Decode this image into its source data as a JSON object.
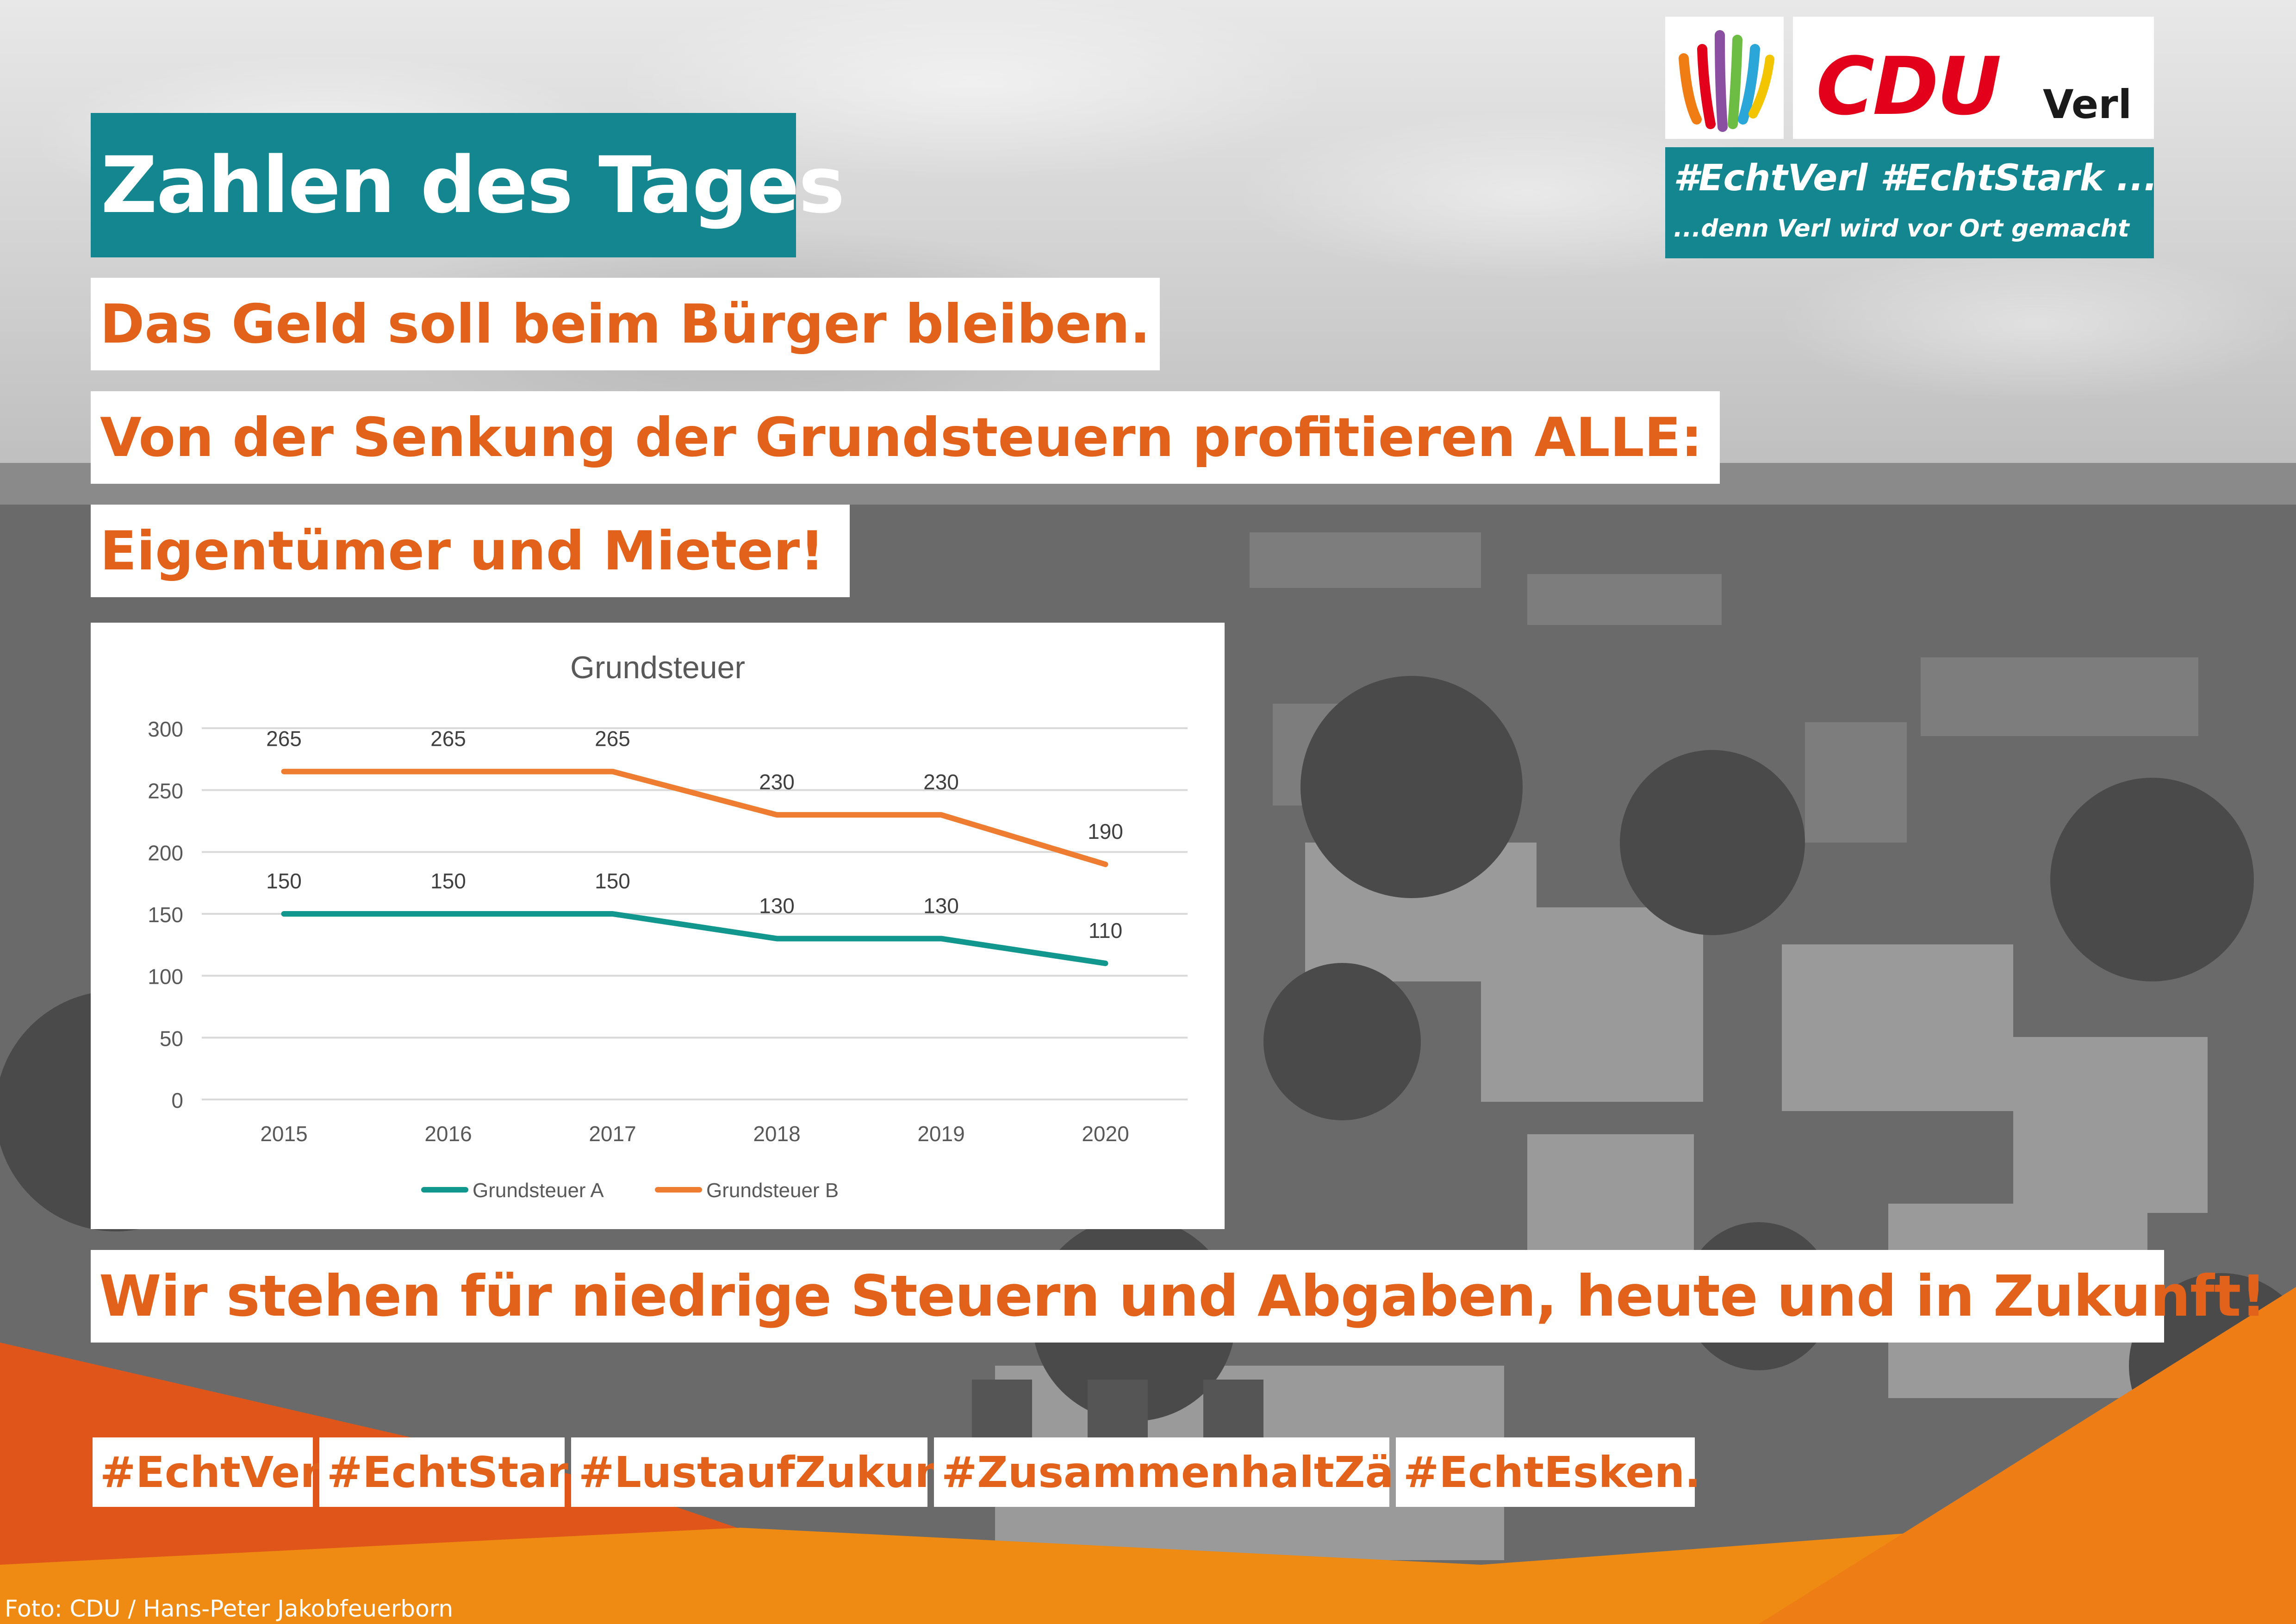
{
  "header": {
    "title": "Zahlen des Tages"
  },
  "headlines": {
    "line1": "Das Geld soll beim Bürger bleiben.",
    "line2": "Von der Senkung der Grundsteuern profitieren ALLE:",
    "line3": "Eigentümer und Mieter!"
  },
  "logo": {
    "party": "CDU",
    "city": "Verl",
    "slogan_main": "#EchtVerl #EchtStark ...",
    "slogan_sub": "...denn Verl wird vor Ort gemacht",
    "icon": "colored-stripes-logo-icon"
  },
  "chart_data": {
    "type": "line",
    "title": "Grundsteuer",
    "categories": [
      "2015",
      "2016",
      "2017",
      "2018",
      "2019",
      "2020"
    ],
    "y_ticks": [
      "0",
      "50",
      "100",
      "150",
      "200",
      "250",
      "300"
    ],
    "ylim": [
      0,
      300
    ],
    "grid": true,
    "legend_position": "bottom",
    "series": [
      {
        "name": "Grundsteuer A",
        "values": [
          150,
          150,
          150,
          130,
          130,
          110
        ],
        "color": "#12978f"
      },
      {
        "name": "Grundsteuer B",
        "values": [
          265,
          265,
          265,
          230,
          230,
          190
        ],
        "color": "#ef7d31"
      }
    ]
  },
  "slogan": "Wir stehen für niedrige Steuern und Abgaben, heute und in Zukunft!",
  "hashtags": [
    "#EchtVerl.",
    "#EchtStark",
    "#LustaufZukunft",
    "#ZusammenhaltZählt!",
    "#EchtEsken."
  ],
  "credit": "Foto: CDU / Hans-Peter Jakobfeuerborn",
  "colors": {
    "accent_orange": "#e2621b",
    "teal": "#13868f",
    "cdu_red": "#e2001a"
  }
}
